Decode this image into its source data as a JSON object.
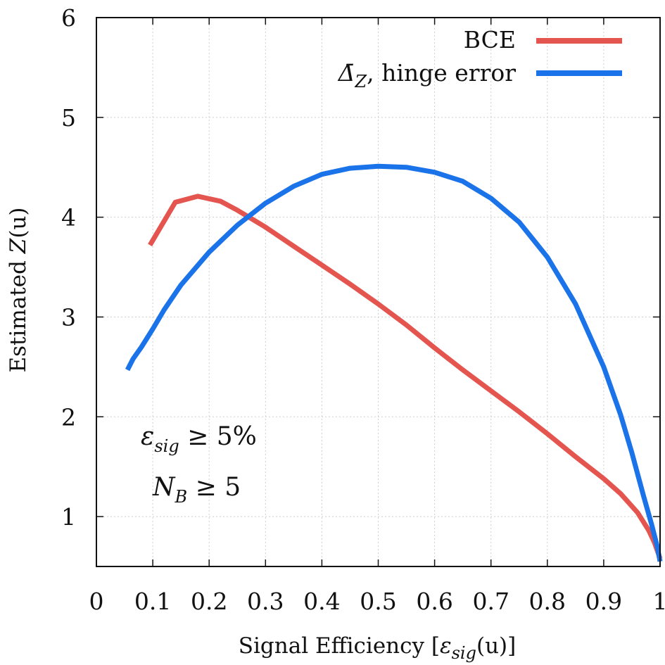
{
  "chart_data": {
    "type": "line",
    "xlabel": "Signal Efficiency [εsig(u)]",
    "xlabel_parts": {
      "prefix": "Signal Efficiency [",
      "symbol": "ε",
      "sub": "sig",
      "arg": "(u)",
      "suffix": "]"
    },
    "ylabel": "Estimated Z(u)",
    "ylabel_parts": {
      "prefix": "Estimated ",
      "symbol": "Z",
      "arg": "(u)"
    },
    "xlim": [
      0,
      1
    ],
    "ylim": [
      0.5,
      6
    ],
    "xticks": [
      0,
      0.1,
      0.2,
      0.3,
      0.4,
      0.5,
      0.6,
      0.7,
      0.8,
      0.9,
      1
    ],
    "xtick_labels": [
      "0",
      "0.1",
      "0.2",
      "0.3",
      "0.4",
      "0.5",
      "0.6",
      "0.7",
      "0.8",
      "0.9",
      "1"
    ],
    "yticks": [
      1,
      2,
      3,
      4,
      5,
      6
    ],
    "ytick_labels": [
      "1",
      "2",
      "3",
      "4",
      "5",
      "6"
    ],
    "grid": true,
    "legend_position": "top-right",
    "series": [
      {
        "name": "BCE",
        "color": "#e5554f",
        "x": [
          0.095,
          0.14,
          0.18,
          0.22,
          0.25,
          0.3,
          0.35,
          0.4,
          0.45,
          0.5,
          0.55,
          0.6,
          0.65,
          0.7,
          0.75,
          0.8,
          0.85,
          0.9,
          0.93,
          0.96,
          0.98,
          0.99,
          1.0
        ],
        "y": [
          3.72,
          4.15,
          4.21,
          4.16,
          4.07,
          3.9,
          3.71,
          3.52,
          3.33,
          3.13,
          2.92,
          2.69,
          2.47,
          2.26,
          2.05,
          1.83,
          1.6,
          1.38,
          1.23,
          1.04,
          0.86,
          0.74,
          0.58
        ]
      },
      {
        "name": "Δ̄Z, hinge error",
        "legend_parts": {
          "symbol": "Δ̄",
          "sub": "Z",
          "rest": ", hinge error"
        },
        "color": "#1a73e8",
        "x": [
          0.055,
          0.065,
          0.08,
          0.1,
          0.12,
          0.15,
          0.2,
          0.25,
          0.3,
          0.35,
          0.4,
          0.45,
          0.5,
          0.55,
          0.6,
          0.65,
          0.7,
          0.75,
          0.8,
          0.85,
          0.9,
          0.93,
          0.95,
          0.97,
          0.985,
          0.995,
          1.0
        ],
        "y": [
          2.47,
          2.58,
          2.7,
          2.88,
          3.07,
          3.32,
          3.65,
          3.92,
          4.14,
          4.31,
          4.43,
          4.49,
          4.51,
          4.5,
          4.45,
          4.36,
          4.19,
          3.95,
          3.6,
          3.13,
          2.5,
          2.02,
          1.64,
          1.22,
          0.92,
          0.7,
          0.55
        ]
      }
    ],
    "annotations": [
      {
        "symbol": "ε",
        "sub": "sig",
        "rest": " ≥ 5%"
      },
      {
        "symbol": "N",
        "sub": "B",
        "rest": " ≥ 5"
      }
    ]
  }
}
